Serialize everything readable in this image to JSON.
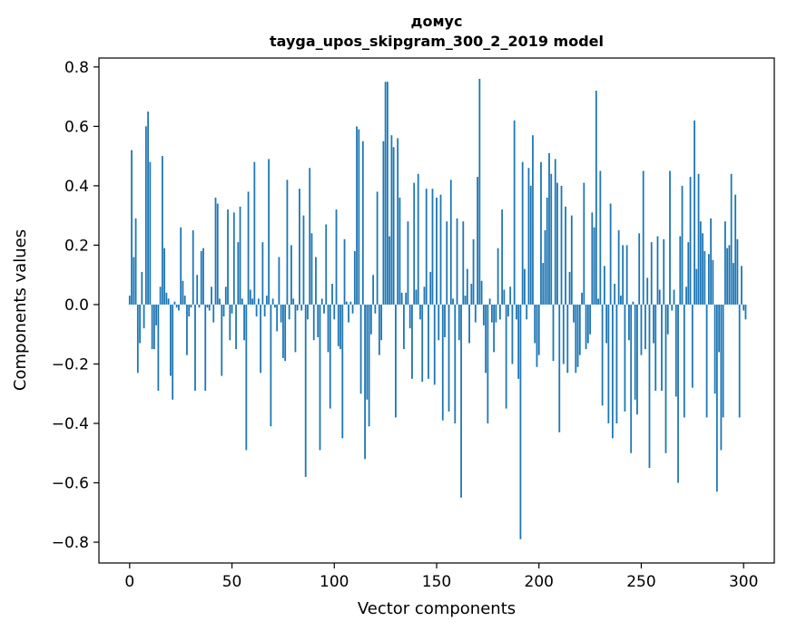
{
  "chart_data": {
    "type": "bar",
    "title_lines": [
      "домус",
      "tayga_upos_skipgram_300_2_2019 model"
    ],
    "xlabel": "Vector components",
    "ylabel": "Components values",
    "xlim": [
      -15,
      315
    ],
    "ylim": [
      -0.87,
      0.83
    ],
    "x_ticks": [
      0,
      50,
      100,
      150,
      200,
      250,
      300
    ],
    "x_tick_labels": [
      "0",
      "50",
      "100",
      "150",
      "200",
      "250",
      "300"
    ],
    "y_ticks": [
      -0.8,
      -0.6,
      -0.4,
      -0.2,
      0.0,
      0.2,
      0.4,
      0.6,
      0.8
    ],
    "y_tick_labels": [
      "−0.8",
      "−0.6",
      "−0.4",
      "−0.2",
      "0.0",
      "0.2",
      "0.4",
      "0.6",
      "0.8"
    ],
    "bar_color": "#1f77b4",
    "grid": false,
    "values": [
      0.03,
      0.52,
      0.16,
      0.29,
      -0.23,
      -0.13,
      0.11,
      -0.08,
      0.6,
      0.65,
      0.48,
      -0.15,
      -0.15,
      -0.07,
      -0.29,
      0.06,
      0.5,
      0.19,
      0.04,
      0.02,
      -0.24,
      -0.32,
      0.01,
      -0.01,
      -0.02,
      0.26,
      0.08,
      0.03,
      -0.17,
      -0.04,
      -0.01,
      0.25,
      -0.29,
      0.1,
      -0.01,
      0.18,
      0.19,
      -0.29,
      -0.01,
      -0.02,
      0.06,
      -0.06,
      0.36,
      0.34,
      0.02,
      -0.24,
      -0.04,
      0.06,
      0.32,
      -0.12,
      -0.03,
      0.31,
      -0.15,
      0.21,
      0.33,
      0.02,
      -0.12,
      -0.49,
      0.38,
      0.05,
      0.02,
      0.48,
      -0.04,
      0.02,
      -0.23,
      0.21,
      -0.04,
      0.03,
      0.49,
      -0.41,
      0.02,
      -0.01,
      -0.09,
      0.16,
      -0.06,
      -0.18,
      -0.19,
      0.42,
      -0.05,
      0.2,
      0.02,
      -0.16,
      -0.02,
      0.39,
      -0.02,
      0.3,
      -0.58,
      -0.05,
      0.46,
      0.24,
      -0.12,
      0.16,
      -0.11,
      -0.49,
      0.02,
      -0.03,
      0.27,
      -0.16,
      -0.35,
      0.07,
      -0.05,
      0.32,
      -0.14,
      -0.15,
      -0.45,
      0.22,
      0.01,
      -0.06,
      0.01,
      -0.03,
      0.18,
      0.6,
      0.59,
      -0.3,
      0.55,
      -0.52,
      -0.32,
      -0.41,
      -0.1,
      0.1,
      -0.03,
      0.38,
      -0.17,
      -0.12,
      0.55,
      0.75,
      0.75,
      0.23,
      0.57,
      0.53,
      -0.38,
      0.56,
      0.36,
      0.04,
      -0.15,
      0.04,
      0.28,
      -0.08,
      -0.25,
      0.41,
      0.05,
      0.44,
      -0.05,
      -0.26,
      0.06,
      0.39,
      -0.25,
      0.11,
      0.39,
      -0.27,
      0.36,
      -0.12,
      0.37,
      -0.39,
      -0.11,
      0.28,
      -0.36,
      0.42,
      0.02,
      -0.4,
      0.29,
      -0.12,
      -0.65,
      0.28,
      0.03,
      0.12,
      -0.13,
      0.07,
      0.22,
      -0.06,
      0.43,
      0.76,
      0.08,
      -0.07,
      -0.23,
      -0.4,
      0.02,
      -0.06,
      -0.16,
      -0.06,
      0.19,
      -0.05,
      0.32,
      0.05,
      -0.35,
      -0.04,
      0.06,
      -0.2,
      0.62,
      -0.05,
      -0.25,
      -0.79,
      0.48,
      0.12,
      -0.05,
      0.46,
      0.4,
      0.57,
      -0.13,
      -0.21,
      -0.17,
      0.48,
      0.14,
      0.25,
      0.36,
      0.51,
      0.44,
      -0.19,
      0.49,
      0.41,
      -0.43,
      0.4,
      -0.2,
      0.33,
      -0.23,
      0.11,
      0.3,
      -0.06,
      -0.23,
      -0.21,
      -0.17,
      0.04,
      0.41,
      -0.15,
      -0.13,
      -0.1,
      0.31,
      0.26,
      0.72,
      0.02,
      0.45,
      -0.34,
      0.13,
      -0.13,
      -0.4,
      0.34,
      -0.45,
      0.07,
      -0.4,
      0.25,
      0.03,
      0.2,
      -0.36,
      0.2,
      -0.12,
      -0.5,
      0.01,
      -0.32,
      -0.37,
      0.24,
      -0.17,
      0.45,
      -0.15,
      0.09,
      -0.55,
      0.21,
      -0.13,
      -0.29,
      0.23,
      0.05,
      -0.29,
      0.22,
      -0.5,
      -0.1,
      0.45,
      -0.02,
      0.05,
      -0.31,
      -0.6,
      0.23,
      0.4,
      -0.38,
      0.06,
      0.21,
      0.43,
      -0.28,
      0.62,
      0.12,
      0.44,
      0.28,
      0.24,
      0.18,
      -0.38,
      0.17,
      0.29,
      0.15,
      -0.3,
      -0.63,
      -0.16,
      -0.49,
      -0.38,
      0.28,
      0.19,
      0.2,
      0.44,
      0.14,
      0.37,
      0.22,
      -0.38,
      0.13,
      -0.02,
      -0.05
    ]
  }
}
